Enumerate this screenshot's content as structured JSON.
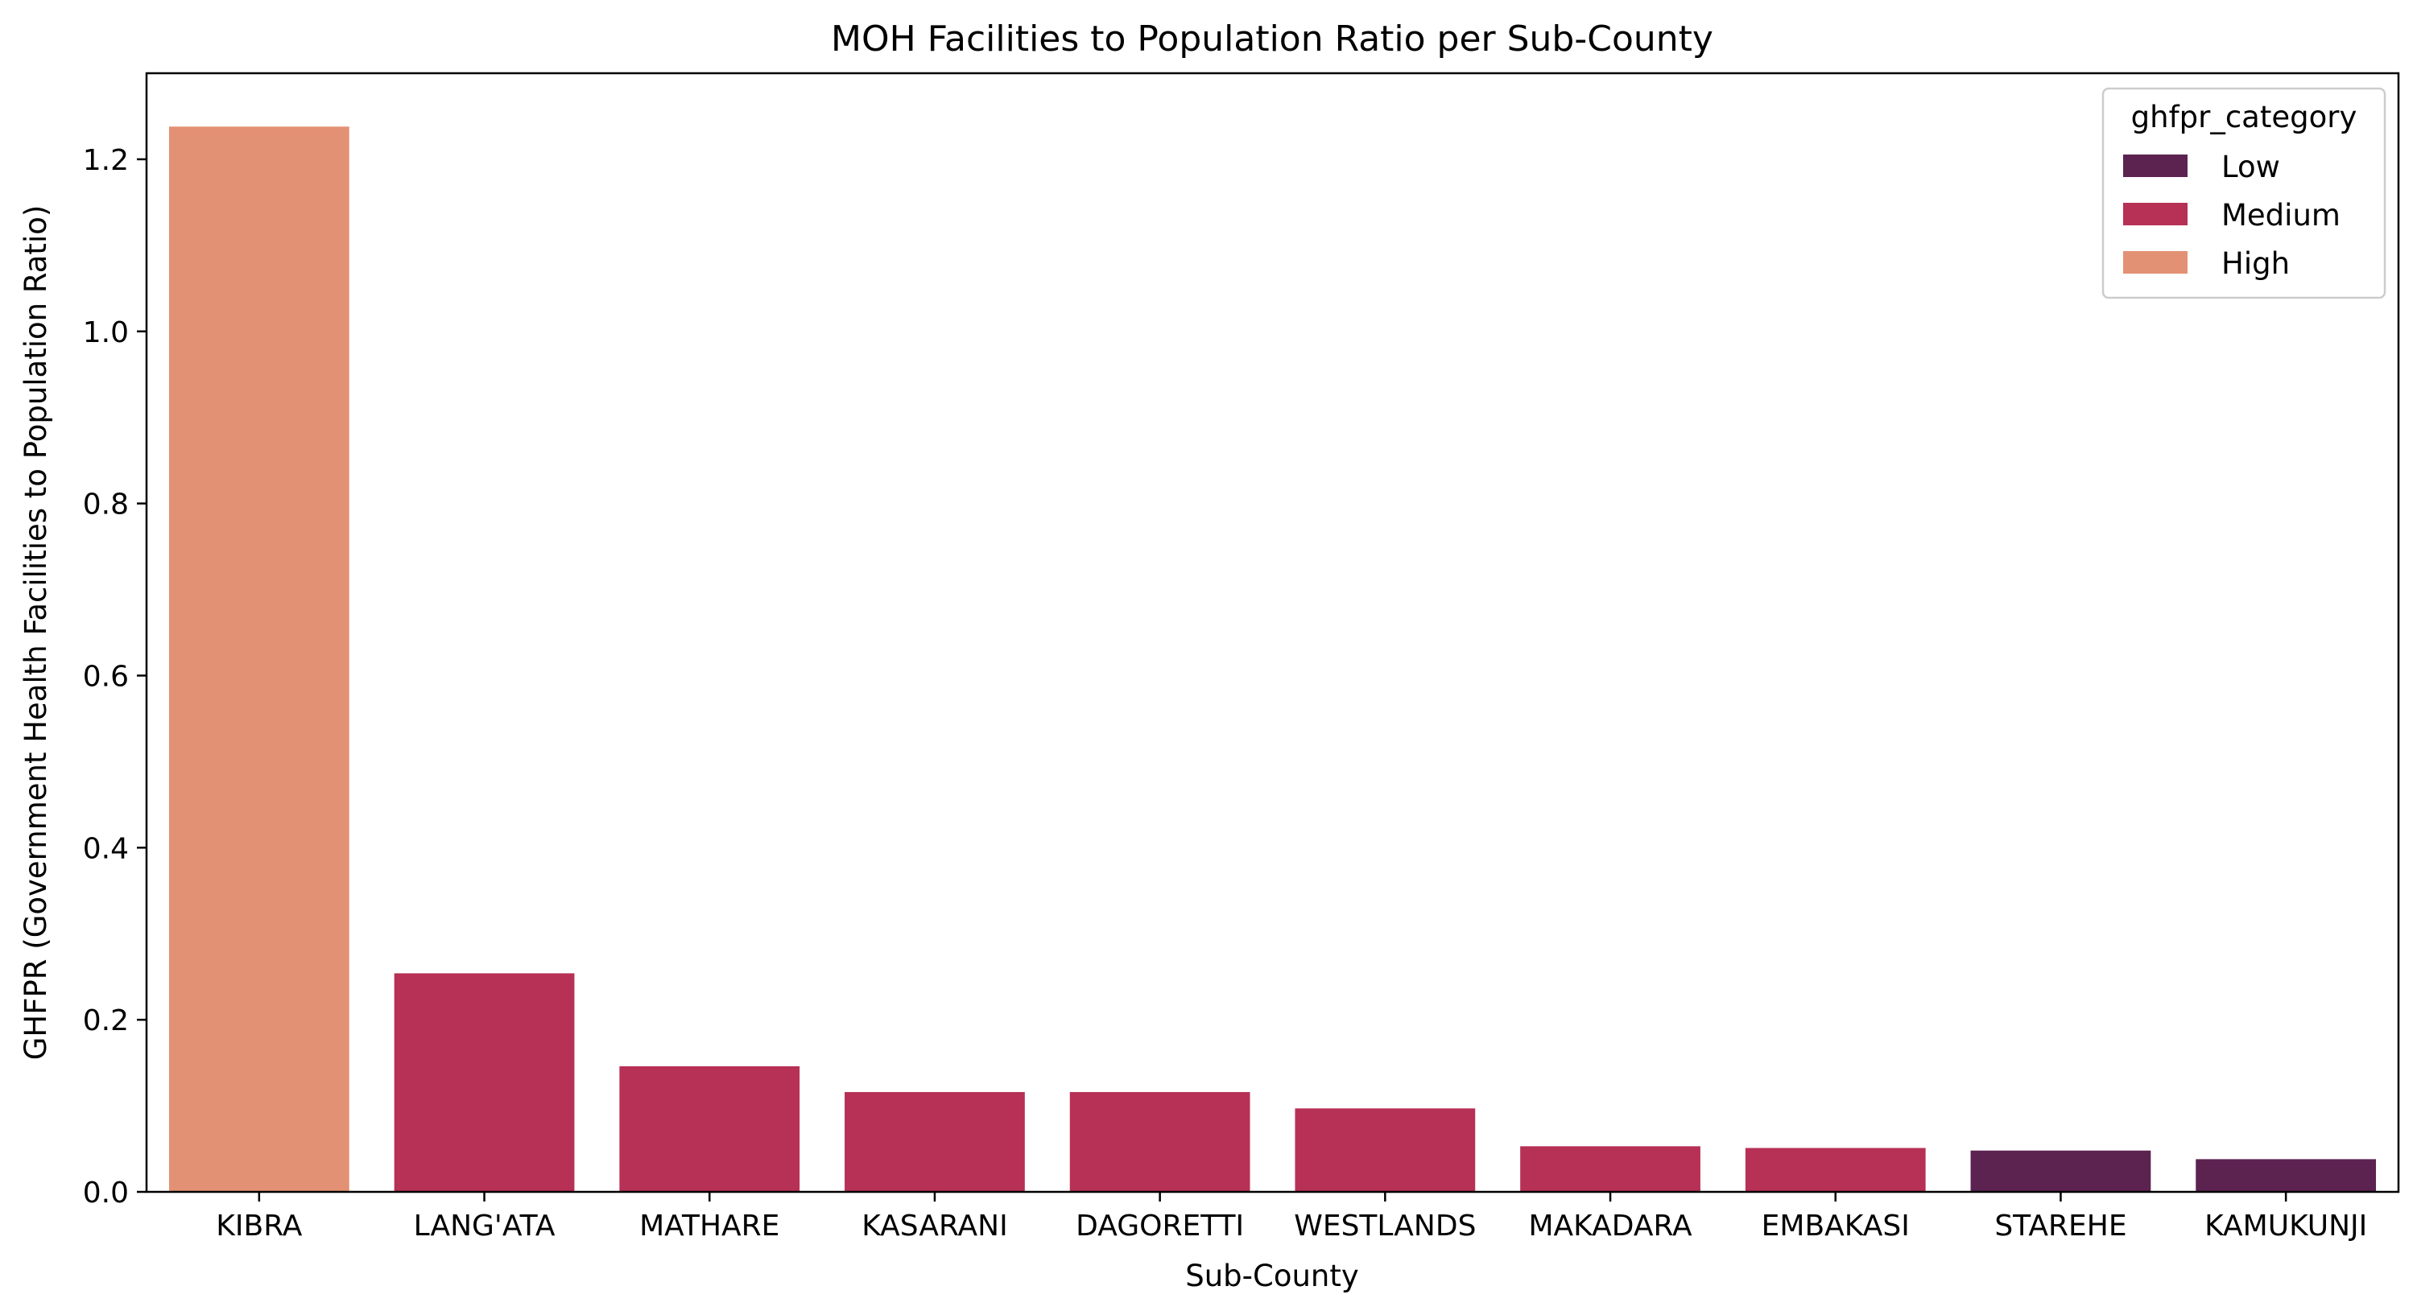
{
  "chart_data": {
    "type": "bar",
    "title": "MOH Facilities to Population Ratio per Sub-County",
    "xlabel": "Sub-County",
    "ylabel": "GHFPR (Government Health Facilities to Population Ratio)",
    "categories": [
      "KIBRA",
      "LANG'ATA",
      "MATHARE",
      "KASARANI",
      "DAGORETTI",
      "WESTLANDS",
      "MAKADARA",
      "EMBAKASI",
      "STAREHE",
      "KAMUKUNJI"
    ],
    "values": [
      1.238,
      0.254,
      0.146,
      0.116,
      0.116,
      0.097,
      0.053,
      0.051,
      0.048,
      0.038
    ],
    "bar_categories": [
      "High",
      "Medium",
      "Medium",
      "Medium",
      "Medium",
      "Medium",
      "Medium",
      "Medium",
      "Low",
      "Low"
    ],
    "ylim": [
      0,
      1.3
    ],
    "yticks": [
      0.0,
      0.2,
      0.4,
      0.6,
      0.8,
      1.0,
      1.2
    ],
    "ytick_labels": [
      "0.0",
      "0.2",
      "0.4",
      "0.6",
      "0.8",
      "1.0",
      "1.2"
    ],
    "grid": false,
    "legend": {
      "title": "ghfpr_category",
      "placement": "top-right",
      "entries": [
        {
          "label": "Low",
          "color": "#5c2250"
        },
        {
          "label": "Medium",
          "color": "#b73056"
        },
        {
          "label": "High",
          "color": "#e39174"
        }
      ]
    },
    "colors": {
      "Low": "#5c2250",
      "Medium": "#b73056",
      "High": "#e39174"
    }
  }
}
